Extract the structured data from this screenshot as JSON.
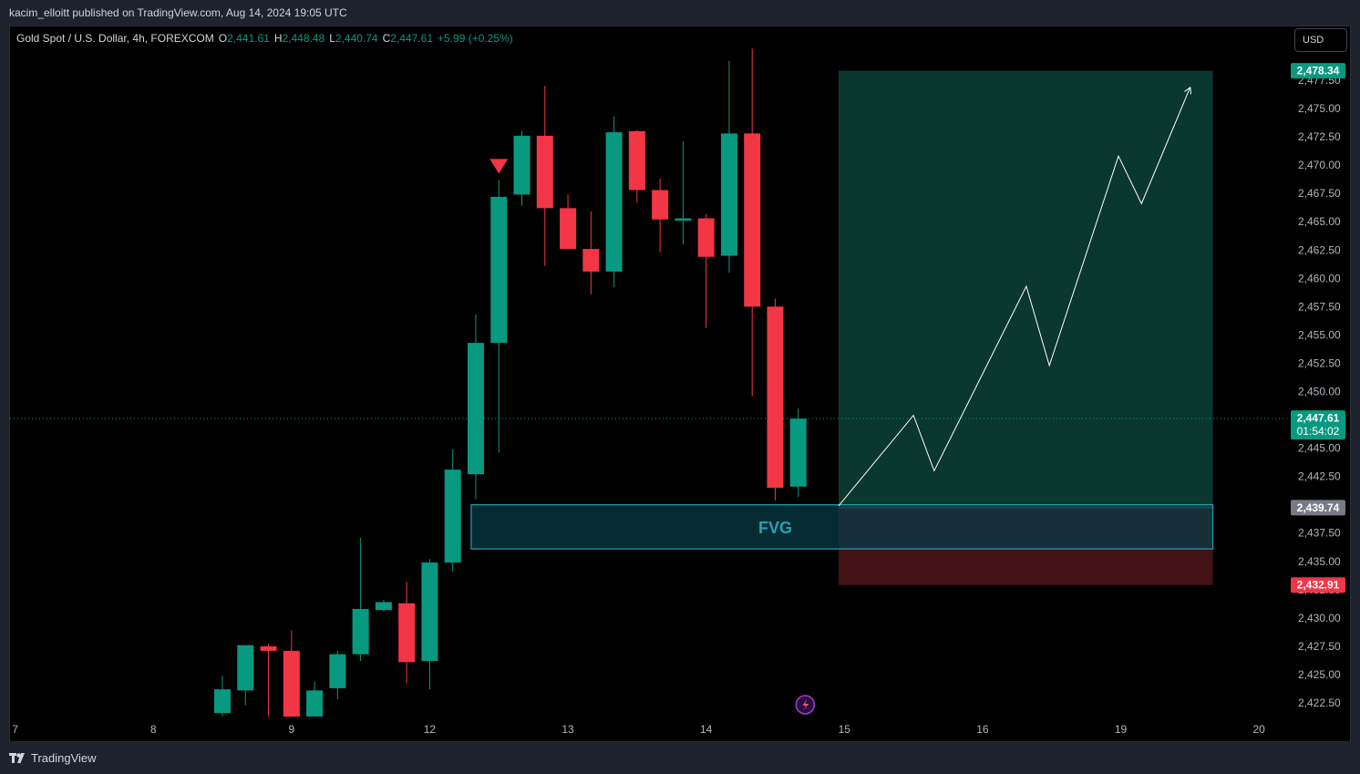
{
  "header": {
    "published_text": "kacim_elloitt published on TradingView.com, Aug 14, 2024 19:05 UTC"
  },
  "legend": {
    "symbol": "Gold Spot / U.S. Dollar, 4h, FOREXCOM",
    "o_label": "O",
    "o": "2,441.61",
    "h_label": "H",
    "h": "2,448.48",
    "l_label": "L",
    "l": "2,440.74",
    "c_label": "C",
    "c": "2,447.61",
    "change": "+5.99 (+0.25%)"
  },
  "currency_button": "USD",
  "footer": {
    "brand": "TradingView"
  },
  "colors": {
    "up": "#089981",
    "down": "#f23645",
    "background": "#000000",
    "profit_zone": "#0b3d33",
    "stop_zone": "#4a141a",
    "fvg_border": "#2aa0b5",
    "fvg_fill": "#073a44"
  },
  "chart_data": {
    "type": "candlestick",
    "timeframe": "4h",
    "y_ticks": [
      "2,422.50",
      "2,425.00",
      "2,427.50",
      "2,430.00",
      "2,432.50",
      "2,435.00",
      "2,437.50",
      "2,440.00",
      "2,442.50",
      "2,445.00",
      "2,447.50",
      "2,450.00",
      "2,452.50",
      "2,455.00",
      "2,457.50",
      "2,460.00",
      "2,462.50",
      "2,465.00",
      "2,467.50",
      "2,470.00",
      "2,472.50",
      "2,475.00",
      "2,477.50"
    ],
    "x_ticks": [
      {
        "label": "7",
        "bar": -9
      },
      {
        "label": "8",
        "bar": -3
      },
      {
        "label": "9",
        "bar": 3
      },
      {
        "label": "12",
        "bar": 9
      },
      {
        "label": "13",
        "bar": 15
      },
      {
        "label": "14",
        "bar": 21
      },
      {
        "label": "15",
        "bar": 27
      },
      {
        "label": "16",
        "bar": 33
      },
      {
        "label": "19",
        "bar": 39
      },
      {
        "label": "20",
        "bar": 45
      }
    ],
    "candles": [
      {
        "o": 2421.6,
        "h": 2424.9,
        "l": 2421.3,
        "c": 2423.7
      },
      {
        "o": 2423.6,
        "h": 2427.6,
        "l": 2422.3,
        "c": 2427.6
      },
      {
        "o": 2427.5,
        "h": 2427.7,
        "l": 2421.2,
        "c": 2427.1
      },
      {
        "o": 2427.1,
        "h": 2428.9,
        "l": 2421.1,
        "c": 2421.2
      },
      {
        "o": 2421.3,
        "h": 2424.4,
        "l": 2421.2,
        "c": 2423.6
      },
      {
        "o": 2423.8,
        "h": 2427.1,
        "l": 2422.8,
        "c": 2426.8
      },
      {
        "o": 2426.8,
        "h": 2437.1,
        "l": 2426.2,
        "c": 2430.8
      },
      {
        "o": 2430.7,
        "h": 2431.6,
        "l": 2430.6,
        "c": 2431.4
      },
      {
        "o": 2431.3,
        "h": 2433.2,
        "l": 2424.2,
        "c": 2426.1
      },
      {
        "o": 2426.2,
        "h": 2435.2,
        "l": 2423.7,
        "c": 2434.9
      },
      {
        "o": 2434.9,
        "h": 2444.9,
        "l": 2434.1,
        "c": 2443.1
      },
      {
        "o": 2442.7,
        "h": 2456.8,
        "l": 2440.5,
        "c": 2454.3
      },
      {
        "o": 2454.3,
        "h": 2468.7,
        "l": 2444.6,
        "c": 2467.2
      },
      {
        "o": 2467.4,
        "h": 2473.0,
        "l": 2466.4,
        "c": 2472.6
      },
      {
        "o": 2472.6,
        "h": 2477.0,
        "l": 2461.1,
        "c": 2466.2
      },
      {
        "o": 2466.2,
        "h": 2467.4,
        "l": 2462.8,
        "c": 2462.6
      },
      {
        "o": 2462.6,
        "h": 2465.9,
        "l": 2458.6,
        "c": 2460.6
      },
      {
        "o": 2460.6,
        "h": 2474.3,
        "l": 2459.2,
        "c": 2472.9
      },
      {
        "o": 2473.0,
        "h": 2473.1,
        "l": 2466.7,
        "c": 2467.8
      },
      {
        "o": 2467.8,
        "h": 2468.8,
        "l": 2462.3,
        "c": 2465.2
      },
      {
        "o": 2465.1,
        "h": 2472.1,
        "l": 2463.0,
        "c": 2465.3
      },
      {
        "o": 2465.3,
        "h": 2465.7,
        "l": 2455.6,
        "c": 2461.9
      },
      {
        "o": 2462.0,
        "h": 2479.2,
        "l": 2460.5,
        "c": 2472.8
      },
      {
        "o": 2472.8,
        "h": 2480.3,
        "l": 2449.6,
        "c": 2457.5
      },
      {
        "o": 2457.5,
        "h": 2458.2,
        "l": 2440.4,
        "c": 2441.5
      },
      {
        "o": 2441.6,
        "h": 2448.5,
        "l": 2440.7,
        "c": 2447.6
      }
    ],
    "signal_marker": {
      "bar": 12,
      "price": 2469.9,
      "type": "sell"
    },
    "fvg": {
      "label": "FVG",
      "top": 2440.0,
      "bottom": 2436.1,
      "from_bar": 10.8,
      "to_bar": 43
    },
    "position": {
      "type": "long",
      "from_bar": 26.75,
      "to_bar": 43,
      "entry": 2439.74,
      "target": 2478.34,
      "stop": 2432.91
    },
    "projection": [
      {
        "bar": 26.75,
        "price": 2439.9
      },
      {
        "bar": 30.0,
        "price": 2447.9
      },
      {
        "bar": 30.9,
        "price": 2443.0
      },
      {
        "bar": 34.9,
        "price": 2459.3
      },
      {
        "bar": 35.9,
        "price": 2452.3
      },
      {
        "bar": 38.9,
        "price": 2470.8
      },
      {
        "bar": 39.9,
        "price": 2466.6
      },
      {
        "bar": 42.0,
        "price": 2476.8
      }
    ],
    "price_labels": [
      {
        "text": "2,478.34",
        "price": 2478.34,
        "kind": "target"
      },
      {
        "text": "2,447.61",
        "sub": "01:54:02",
        "price": 2447.61,
        "kind": "last"
      },
      {
        "text": "2,439.74",
        "price": 2439.74,
        "kind": "entry"
      },
      {
        "text": "2,432.91",
        "price": 2432.91,
        "kind": "stop"
      }
    ],
    "last_price": 2447.61
  }
}
